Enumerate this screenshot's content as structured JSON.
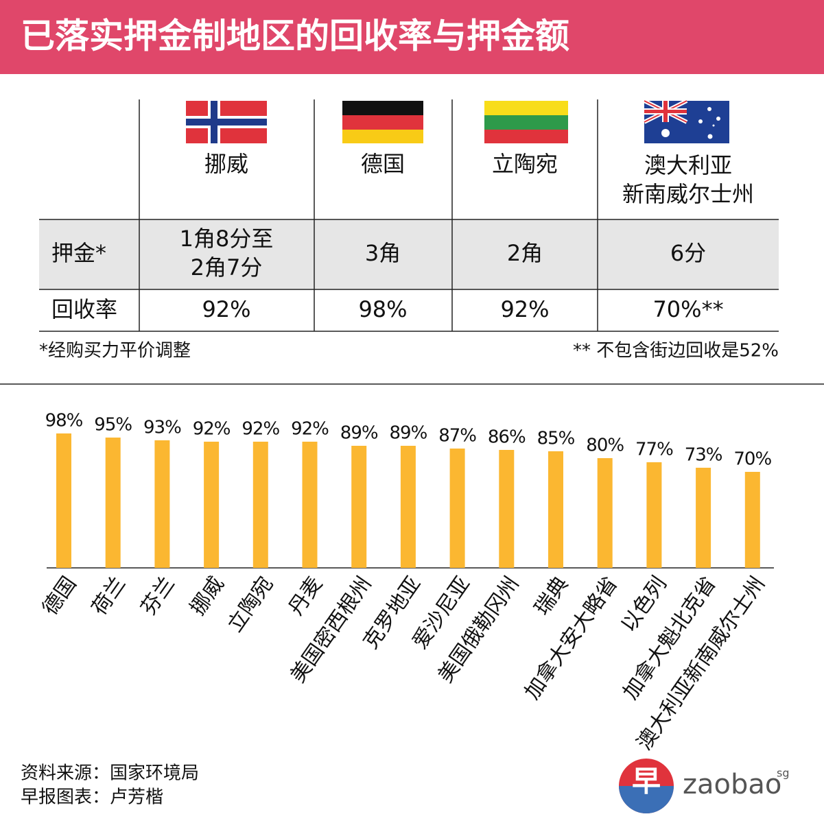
{
  "title": "已落实押金制地区的回收率与押金额",
  "table": {
    "header": [
      [
        "挪威"
      ],
      [
        "德国"
      ],
      [
        "立陶宛"
      ],
      [
        "澳大利亚",
        "新南威尔士州"
      ]
    ],
    "rows": [
      {
        "label": "押金*",
        "cells": [
          [
            "1角8分至",
            "2角7分"
          ],
          [
            "3角"
          ],
          [
            "2角"
          ],
          [
            "6分"
          ]
        ]
      },
      {
        "label": "回收率",
        "cells": [
          [
            "92%"
          ],
          [
            "98%"
          ],
          [
            "92%"
          ],
          [
            "70%**"
          ]
        ]
      }
    ],
    "footnotes": [
      "*经购买力平价调整",
      "** 不包含街边回收是52%"
    ]
  },
  "chart_data": {
    "type": "bar",
    "categories": [
      "德国",
      "荷兰",
      "芬兰",
      "挪威",
      "立陶宛",
      "丹麦",
      "美国密西根州",
      "克罗地亚",
      "爱沙尼亚",
      "美国俄勒冈州",
      "瑞典",
      "加拿大安大略省",
      "以色列",
      "加拿大魁北克省",
      "澳大利亚新南威尔士州"
    ],
    "values": [
      98,
      95,
      93,
      92,
      92,
      92,
      89,
      89,
      87,
      86,
      85,
      80,
      77,
      73,
      70
    ],
    "value_labels": [
      "98%",
      "95%",
      "93%",
      "92%",
      "92%",
      "92%",
      "89%",
      "89%",
      "87%",
      "86%",
      "85%",
      "80%",
      "77%",
      "73%",
      "70%"
    ],
    "color": "#fbb731"
  },
  "source": [
    "资料来源：国家环境局",
    "早报图表：卢芳楷"
  ],
  "logo": {
    "mark": "早",
    "name": "zaobao",
    "suffix": "sg"
  }
}
